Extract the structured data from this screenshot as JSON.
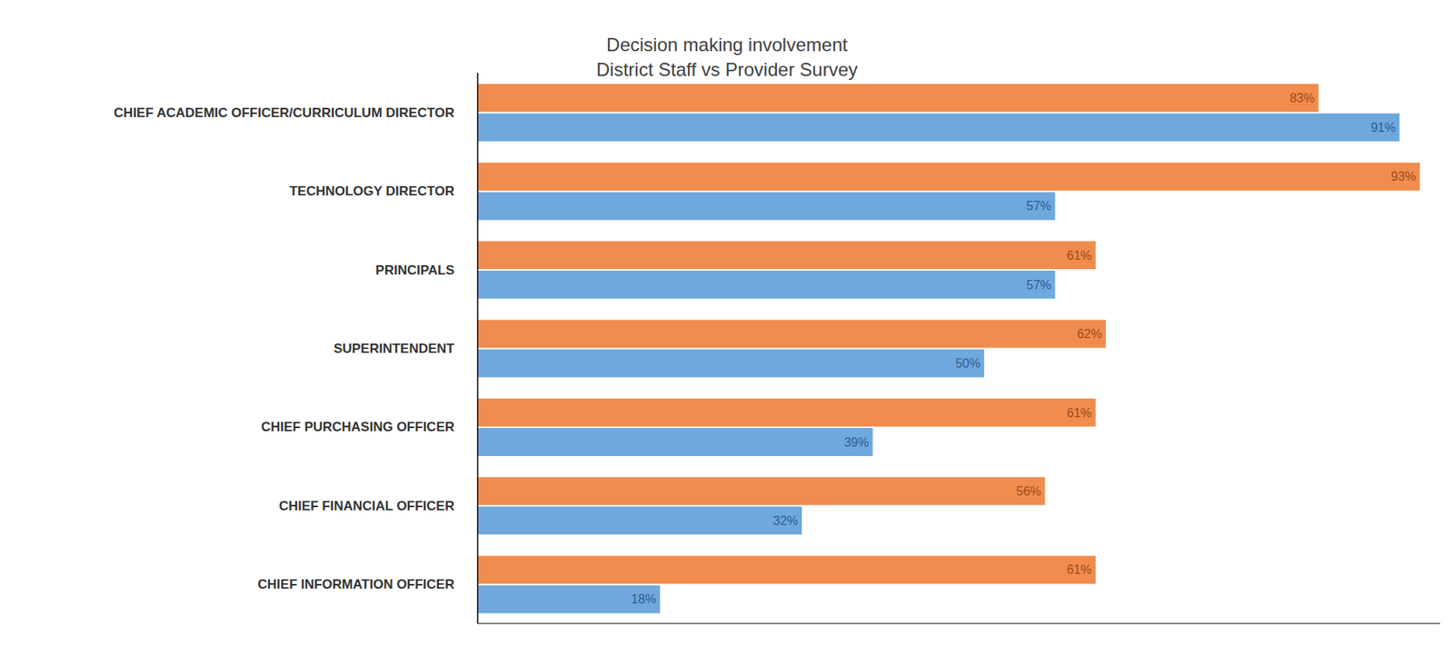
{
  "chart_data": {
    "type": "bar",
    "title": "Decision making involvement",
    "subtitle": "District Staff vs Provider Survey",
    "orientation": "horizontal",
    "data_labels": true,
    "tick_labels": "y",
    "grid": false,
    "xlim": [
      0,
      95
    ],
    "categories": [
      "CHIEF ACADEMIC OFFICER/CURRICULUM DIRECTOR",
      "TECHNOLOGY DIRECTOR",
      "PRINCIPALS",
      "SUPERINTENDENT",
      "CHIEF PURCHASING OFFICER",
      "CHIEF FINANCIAL OFFICER",
      "CHIEF INFORMATION OFFICER"
    ],
    "series": [
      {
        "color": "#F08C4E",
        "values": [
          83,
          93,
          61,
          62,
          61,
          56,
          61
        ],
        "value_labels": [
          "83%",
          "93%",
          "61%",
          "62%",
          "61%",
          "56%",
          "61%"
        ]
      },
      {
        "color": "#6FA8DC",
        "values": [
          91,
          57,
          57,
          50,
          39,
          32,
          18
        ],
        "value_labels": [
          "91%",
          "57%",
          "57%",
          "50%",
          "39%",
          "32%",
          "18%"
        ]
      }
    ]
  }
}
